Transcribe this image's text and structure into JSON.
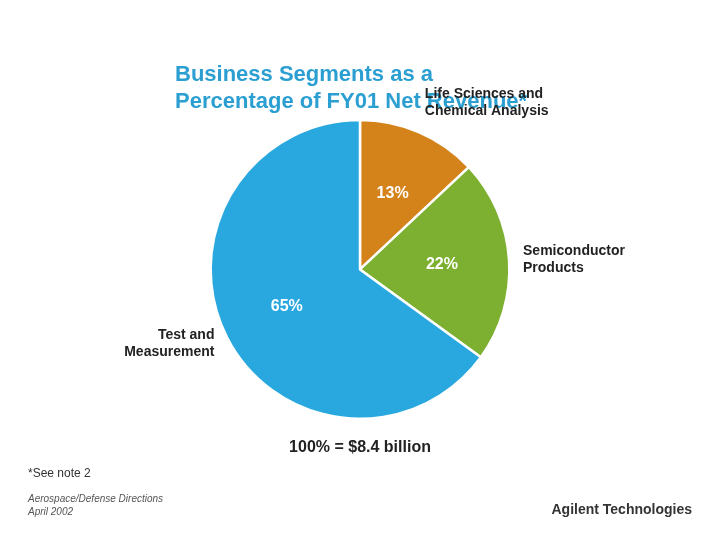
{
  "chart_data": {
    "type": "pie",
    "title": "Business Segments as a\nPercentage of FY01 Net Revenue*",
    "categories": [
      "Life Sciences and\nChemical Analysis",
      "Semiconductor\nProducts",
      "Test and\nMeasurement"
    ],
    "values": [
      13,
      22,
      65
    ],
    "value_labels": [
      "13%",
      "22%",
      "65%"
    ],
    "colors": [
      "#D4821A",
      "#7DB031",
      "#29A8E0"
    ],
    "data_labels": true,
    "annotations": [
      "100% = $8.4 billion",
      "*See note 2",
      "Aerospace/Defense Directions\nApril 2002",
      "Agilent Technologies"
    ]
  }
}
